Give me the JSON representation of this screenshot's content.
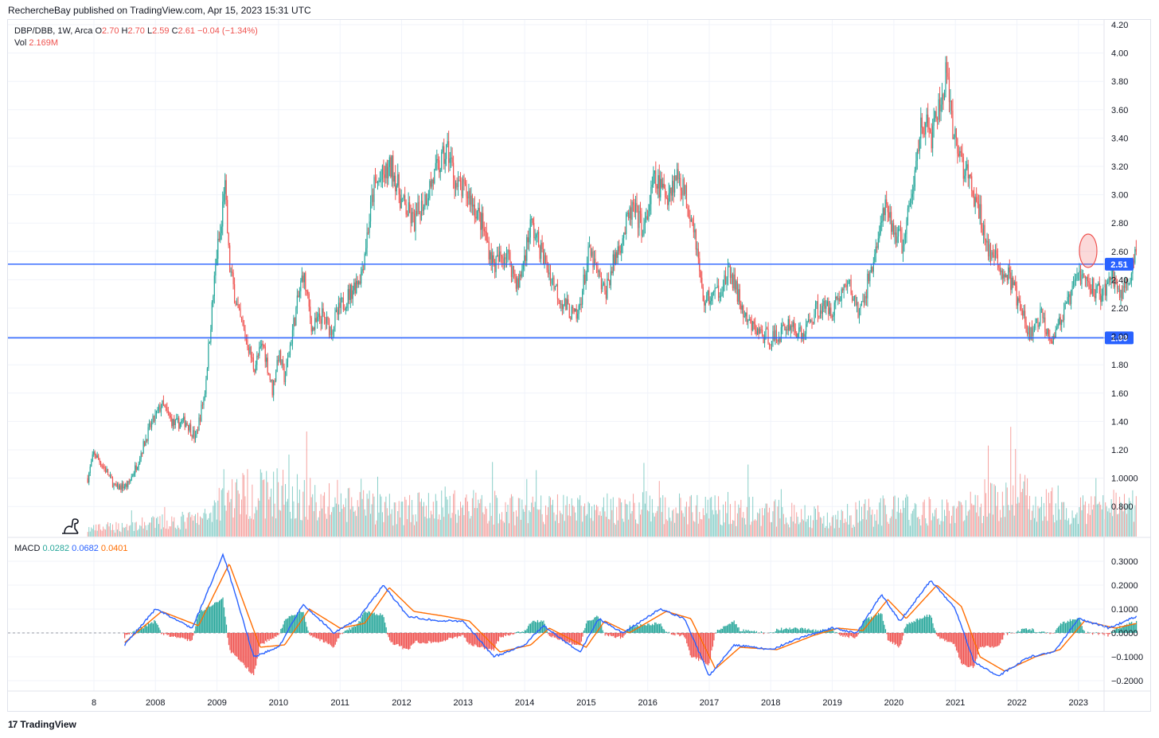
{
  "header": {
    "text": "RechercheBay published on TradingView.com, Apr 15, 2023 15:31 UTC"
  },
  "legend": {
    "symbol": "DBP/DBB, 1W, Arca",
    "o_label": "O",
    "o_value": "2.70",
    "h_label": "H",
    "h_value": "2.70",
    "l_label": "L",
    "l_value": "2.59",
    "c_label": "C",
    "c_value": "2.61",
    "change": "−0.04 (−1.34%)",
    "vol_label": "Vol",
    "vol_value": "2.169M"
  },
  "macd_legend": {
    "label": "MACD",
    "hist": "0.0282",
    "macd": "0.0682",
    "signal": "0.0401"
  },
  "footer": {
    "logo": "17",
    "text": "TradingView"
  },
  "colors": {
    "up": "#26a69a",
    "down": "#ef5350",
    "line": "#2962ff",
    "macd": "#2962ff",
    "signal": "#ff6d00",
    "grid": "#f0f3fa"
  },
  "chart_data": [
    {
      "type": "candlestick",
      "title": "DBP/DBB, 1W, Arca",
      "x_ticks": [
        "8",
        "2008",
        "2009",
        "2010",
        "2011",
        "2012",
        "2013",
        "2014",
        "2015",
        "2016",
        "2017",
        "2018",
        "2019",
        "2020",
        "2021",
        "2022",
        "2023"
      ],
      "y_ticks": [
        "4.20",
        "4.00",
        "3.80",
        "3.60",
        "3.40",
        "3.20",
        "3.00",
        "2.80",
        "2.60",
        "2.40",
        "2.20",
        "2.00",
        "1.80",
        "1.60",
        "1.40",
        "1.20",
        "1.0000",
        "0.800"
      ],
      "ylim": [
        0.62,
        4.2
      ],
      "grid": true,
      "horizontal_lines": [
        {
          "value": 2.51,
          "label": "2.51"
        },
        {
          "value": 1.99,
          "label": "1.99"
        }
      ],
      "annotation": {
        "type": "ellipse",
        "value_range": [
          2.45,
          2.75
        ],
        "x": 2023.15
      },
      "price_path": [
        [
          2006.9,
          1.0
        ],
        [
          2007.0,
          1.18
        ],
        [
          2007.2,
          1.05
        ],
        [
          2007.35,
          0.93
        ],
        [
          2007.55,
          0.95
        ],
        [
          2007.7,
          1.1
        ],
        [
          2007.9,
          1.35
        ],
        [
          2008.1,
          1.52
        ],
        [
          2008.3,
          1.38
        ],
        [
          2008.5,
          1.4
        ],
        [
          2008.65,
          1.28
        ],
        [
          2008.8,
          1.6
        ],
        [
          2008.9,
          2.1
        ],
        [
          2009.0,
          2.6
        ],
        [
          2009.07,
          2.75
        ],
        [
          2009.12,
          3.12
        ],
        [
          2009.2,
          2.5
        ],
        [
          2009.35,
          2.15
        ],
        [
          2009.5,
          1.95
        ],
        [
          2009.6,
          1.78
        ],
        [
          2009.75,
          1.95
        ],
        [
          2009.9,
          1.62
        ],
        [
          2010.0,
          1.88
        ],
        [
          2010.1,
          1.7
        ],
        [
          2010.25,
          2.1
        ],
        [
          2010.4,
          2.45
        ],
        [
          2010.55,
          2.05
        ],
        [
          2010.7,
          2.15
        ],
        [
          2010.85,
          2.05
        ],
        [
          2011.0,
          2.2
        ],
        [
          2011.15,
          2.3
        ],
        [
          2011.35,
          2.45
        ],
        [
          2011.55,
          3.05
        ],
        [
          2011.85,
          3.2
        ],
        [
          2012.0,
          2.95
        ],
        [
          2012.2,
          2.8
        ],
        [
          2012.5,
          3.1
        ],
        [
          2012.75,
          3.32
        ],
        [
          2012.9,
          3.05
        ],
        [
          2013.1,
          3.0
        ],
        [
          2013.3,
          2.8
        ],
        [
          2013.5,
          2.5
        ],
        [
          2013.7,
          2.6
        ],
        [
          2013.9,
          2.35
        ],
        [
          2014.1,
          2.8
        ],
        [
          2014.35,
          2.5
        ],
        [
          2014.6,
          2.25
        ],
        [
          2014.85,
          2.12
        ],
        [
          2015.05,
          2.6
        ],
        [
          2015.3,
          2.3
        ],
        [
          2015.5,
          2.6
        ],
        [
          2015.75,
          2.9
        ],
        [
          2015.95,
          2.75
        ],
        [
          2016.1,
          3.1
        ],
        [
          2016.3,
          3.0
        ],
        [
          2016.5,
          3.15
        ],
        [
          2016.75,
          2.8
        ],
        [
          2016.9,
          2.25
        ],
        [
          2017.1,
          2.3
        ],
        [
          2017.35,
          2.45
        ],
        [
          2017.6,
          2.1
        ],
        [
          2017.9,
          2.0
        ],
        [
          2018.1,
          1.99
        ],
        [
          2018.3,
          2.1
        ],
        [
          2018.5,
          2.0
        ],
        [
          2018.75,
          2.2
        ],
        [
          2019.0,
          2.2
        ],
        [
          2019.25,
          2.38
        ],
        [
          2019.45,
          2.15
        ],
        [
          2019.7,
          2.6
        ],
        [
          2019.85,
          2.9
        ],
        [
          2020.0,
          2.75
        ],
        [
          2020.15,
          2.65
        ],
        [
          2020.3,
          3.0
        ],
        [
          2020.45,
          3.55
        ],
        [
          2020.6,
          3.4
        ],
        [
          2020.75,
          3.62
        ],
        [
          2020.85,
          3.85
        ],
        [
          2020.95,
          3.45
        ],
        [
          2021.1,
          3.25
        ],
        [
          2021.25,
          3.05
        ],
        [
          2021.4,
          2.85
        ],
        [
          2021.55,
          2.6
        ],
        [
          2021.7,
          2.5
        ],
        [
          2021.9,
          2.4
        ],
        [
          2022.05,
          2.2
        ],
        [
          2022.2,
          2.0
        ],
        [
          2022.4,
          2.15
        ],
        [
          2022.55,
          1.99
        ],
        [
          2022.7,
          2.1
        ],
        [
          2022.85,
          2.25
        ],
        [
          2023.0,
          2.45
        ],
        [
          2023.2,
          2.35
        ],
        [
          2023.4,
          2.3
        ],
        [
          2023.55,
          2.45
        ],
        [
          2023.65,
          2.3
        ],
        [
          2023.8,
          2.38
        ],
        [
          2023.95,
          2.6
        ]
      ]
    },
    {
      "type": "bar",
      "title": "Vol",
      "volume_profile": [
        [
          2006.9,
          0.08
        ],
        [
          2008.0,
          0.15
        ],
        [
          2008.8,
          0.2
        ],
        [
          2009.1,
          0.45
        ],
        [
          2010.0,
          0.5
        ],
        [
          2011.0,
          0.35
        ],
        [
          2012.0,
          0.3
        ],
        [
          2013.0,
          0.35
        ],
        [
          2014.0,
          0.3
        ],
        [
          2015.0,
          0.3
        ],
        [
          2016.0,
          0.32
        ],
        [
          2017.0,
          0.3
        ],
        [
          2018.0,
          0.27
        ],
        [
          2019.0,
          0.22
        ],
        [
          2020.0,
          0.3
        ],
        [
          2021.0,
          0.28
        ],
        [
          2022.0,
          0.45
        ],
        [
          2023.0,
          0.3
        ],
        [
          2023.95,
          0.35
        ]
      ]
    },
    {
      "type": "line",
      "title": "MACD",
      "y_ticks": [
        "0.3000",
        "0.2000",
        "0.1000",
        "0.0000",
        "−0.1000",
        "−0.2000"
      ],
      "ylim": [
        -0.23,
        0.33
      ],
      "series": [
        {
          "name": "MACD",
          "color": "#2962ff",
          "points": [
            [
              2007.5,
              -0.05
            ],
            [
              2008.0,
              0.1
            ],
            [
              2008.6,
              0.02
            ],
            [
              2009.1,
              0.33
            ],
            [
              2009.6,
              -0.1
            ],
            [
              2010.0,
              -0.06
            ],
            [
              2010.4,
              0.12
            ],
            [
              2010.9,
              0.0
            ],
            [
              2011.3,
              0.06
            ],
            [
              2011.7,
              0.2
            ],
            [
              2012.1,
              0.07
            ],
            [
              2012.6,
              0.05
            ],
            [
              2013.0,
              0.05
            ],
            [
              2013.5,
              -0.1
            ],
            [
              2014.0,
              -0.05
            ],
            [
              2014.3,
              0.03
            ],
            [
              2014.9,
              -0.08
            ],
            [
              2015.2,
              0.06
            ],
            [
              2015.6,
              0.0
            ],
            [
              2016.2,
              0.1
            ],
            [
              2016.6,
              0.06
            ],
            [
              2017.0,
              -0.18
            ],
            [
              2017.4,
              -0.05
            ],
            [
              2018.0,
              -0.07
            ],
            [
              2018.6,
              -0.01
            ],
            [
              2019.0,
              0.02
            ],
            [
              2019.4,
              0.0
            ],
            [
              2019.8,
              0.16
            ],
            [
              2020.1,
              0.05
            ],
            [
              2020.6,
              0.22
            ],
            [
              2021.0,
              0.1
            ],
            [
              2021.3,
              -0.12
            ],
            [
              2021.7,
              -0.18
            ],
            [
              2022.2,
              -0.1
            ],
            [
              2022.6,
              -0.08
            ],
            [
              2023.0,
              0.06
            ],
            [
              2023.5,
              0.02
            ],
            [
              2023.95,
              0.07
            ]
          ]
        },
        {
          "name": "Signal",
          "color": "#ff6d00",
          "points": [
            [
              2007.5,
              -0.04
            ],
            [
              2008.1,
              0.09
            ],
            [
              2008.7,
              0.03
            ],
            [
              2009.2,
              0.29
            ],
            [
              2009.7,
              -0.06
            ],
            [
              2010.1,
              -0.05
            ],
            [
              2010.5,
              0.1
            ],
            [
              2011.0,
              0.02
            ],
            [
              2011.4,
              0.04
            ],
            [
              2011.8,
              0.19
            ],
            [
              2012.2,
              0.09
            ],
            [
              2012.7,
              0.07
            ],
            [
              2013.1,
              0.05
            ],
            [
              2013.6,
              -0.08
            ],
            [
              2014.1,
              -0.05
            ],
            [
              2014.4,
              0.02
            ],
            [
              2015.0,
              -0.06
            ],
            [
              2015.3,
              0.05
            ],
            [
              2015.7,
              0.0
            ],
            [
              2016.3,
              0.09
            ],
            [
              2016.7,
              0.06
            ],
            [
              2017.1,
              -0.15
            ],
            [
              2017.5,
              -0.06
            ],
            [
              2018.1,
              -0.07
            ],
            [
              2018.7,
              -0.01
            ],
            [
              2019.1,
              0.02
            ],
            [
              2019.5,
              0.01
            ],
            [
              2019.9,
              0.14
            ],
            [
              2020.2,
              0.06
            ],
            [
              2020.7,
              0.2
            ],
            [
              2021.1,
              0.11
            ],
            [
              2021.4,
              -0.1
            ],
            [
              2021.8,
              -0.16
            ],
            [
              2022.3,
              -0.1
            ],
            [
              2022.7,
              -0.07
            ],
            [
              2023.1,
              0.05
            ],
            [
              2023.6,
              0.02
            ],
            [
              2023.95,
              0.04
            ]
          ]
        }
      ]
    }
  ]
}
